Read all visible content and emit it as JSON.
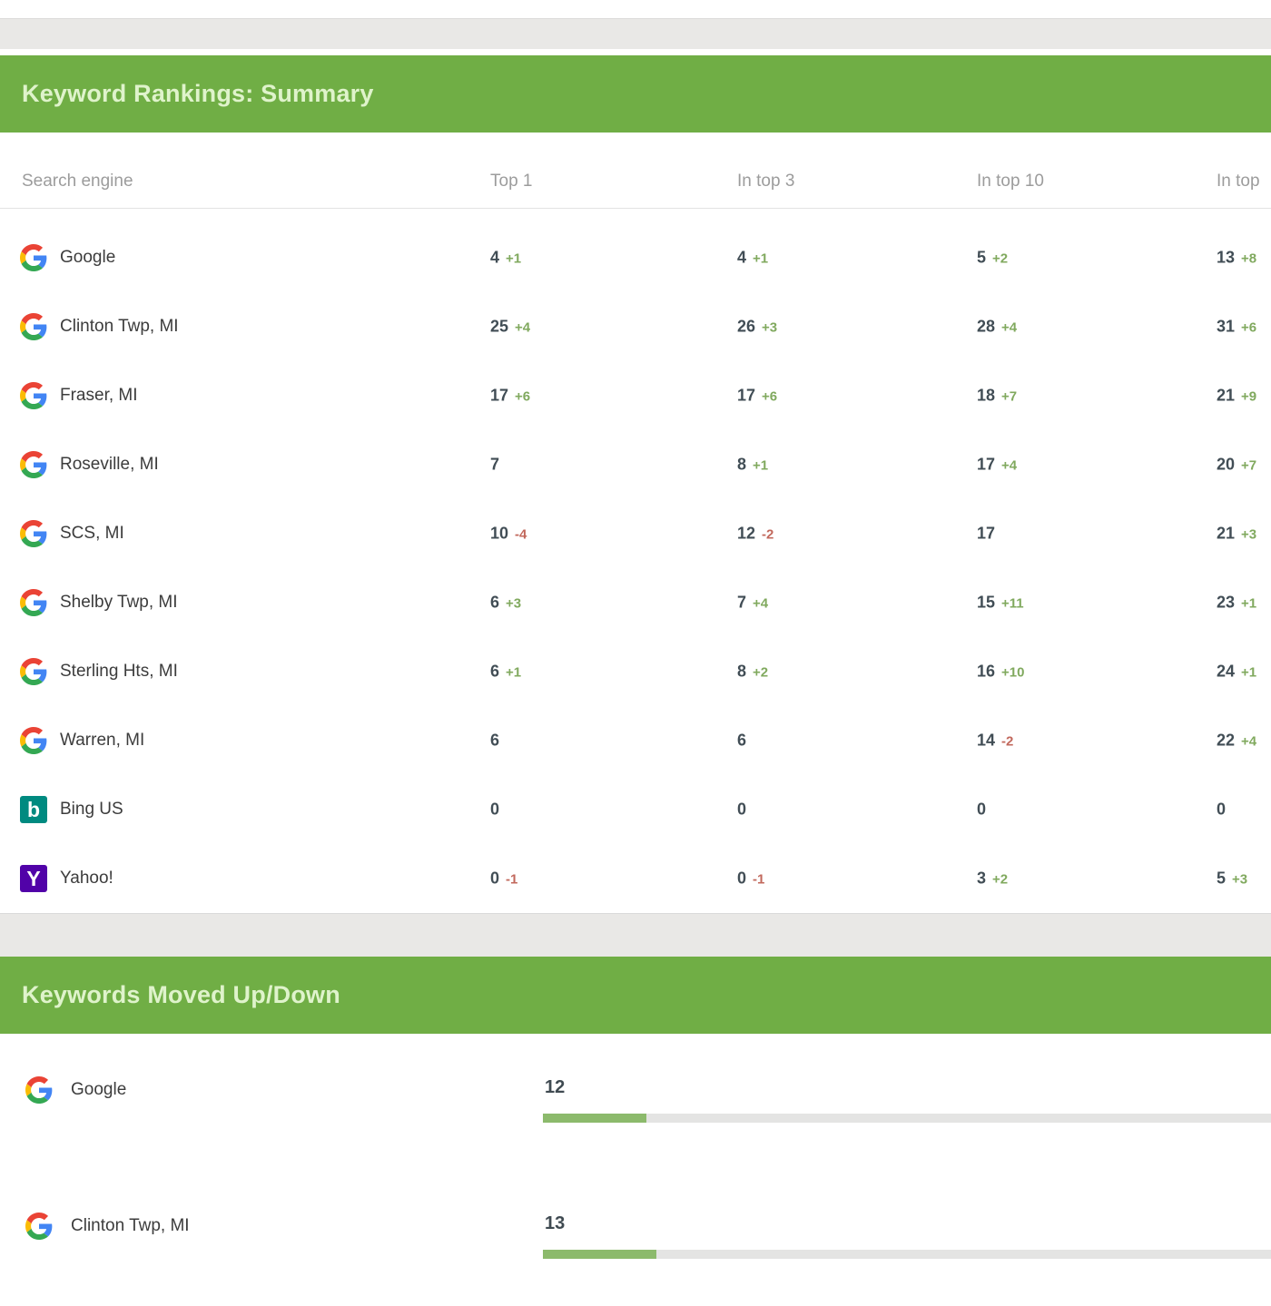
{
  "summary": {
    "title": "Keyword Rankings: Summary",
    "columns": [
      "Search engine",
      "Top 1",
      "In top 3",
      "In top 10",
      "In top"
    ],
    "rows": [
      {
        "engine": "Google",
        "icon": "google",
        "top1": "4",
        "top1_delta": "+1",
        "top3": "4",
        "top3_delta": "+1",
        "top10": "5",
        "top10_delta": "+2",
        "top20": "13",
        "top20_delta": "+8"
      },
      {
        "engine": "Clinton Twp, MI",
        "icon": "google",
        "top1": "25",
        "top1_delta": "+4",
        "top3": "26",
        "top3_delta": "+3",
        "top10": "28",
        "top10_delta": "+4",
        "top20": "31",
        "top20_delta": "+6"
      },
      {
        "engine": "Fraser, MI",
        "icon": "google",
        "top1": "17",
        "top1_delta": "+6",
        "top3": "17",
        "top3_delta": "+6",
        "top10": "18",
        "top10_delta": "+7",
        "top20": "21",
        "top20_delta": "+9"
      },
      {
        "engine": "Roseville, MI",
        "icon": "google",
        "top1": "7",
        "top1_delta": "",
        "top3": "8",
        "top3_delta": "+1",
        "top10": "17",
        "top10_delta": "+4",
        "top20": "20",
        "top20_delta": "+7"
      },
      {
        "engine": "SCS, MI",
        "icon": "google",
        "top1": "10",
        "top1_delta": "-4",
        "top3": "12",
        "top3_delta": "-2",
        "top10": "17",
        "top10_delta": "",
        "top20": "21",
        "top20_delta": "+3"
      },
      {
        "engine": "Shelby Twp, MI",
        "icon": "google",
        "top1": "6",
        "top1_delta": "+3",
        "top3": "7",
        "top3_delta": "+4",
        "top10": "15",
        "top10_delta": "+11",
        "top20": "23",
        "top20_delta": "+1"
      },
      {
        "engine": "Sterling Hts, MI",
        "icon": "google",
        "top1": "6",
        "top1_delta": "+1",
        "top3": "8",
        "top3_delta": "+2",
        "top10": "16",
        "top10_delta": "+10",
        "top20": "24",
        "top20_delta": "+1"
      },
      {
        "engine": "Warren, MI",
        "icon": "google",
        "top1": "6",
        "top1_delta": "",
        "top3": "6",
        "top3_delta": "",
        "top10": "14",
        "top10_delta": "-2",
        "top20": "22",
        "top20_delta": "+4"
      },
      {
        "engine": "Bing US",
        "icon": "bing",
        "top1": "0",
        "top1_delta": "",
        "top3": "0",
        "top3_delta": "",
        "top10": "0",
        "top10_delta": "",
        "top20": "0",
        "top20_delta": ""
      },
      {
        "engine": "Yahoo!",
        "icon": "yahoo",
        "top1": "0",
        "top1_delta": "-1",
        "top3": "0",
        "top3_delta": "-1",
        "top10": "3",
        "top10_delta": "+2",
        "top20": "5",
        "top20_delta": "+3"
      }
    ]
  },
  "moved": {
    "title": "Keywords Moved Up/Down",
    "rows": [
      {
        "engine": "Google",
        "icon": "google",
        "value": "12",
        "bar_pct": 14.2
      },
      {
        "engine": "Clinton Twp, MI",
        "icon": "google",
        "value": "13",
        "bar_pct": 15.6
      }
    ],
    "icon_labels": {
      "bing": "b",
      "yahoo": "Y"
    }
  },
  "colors": {
    "header_green": "#70ae45",
    "header_text": "#dff3cb",
    "delta_up": "#80a95e",
    "delta_down": "#c2685c",
    "bar_fill": "#8cba6c",
    "bar_track": "#e4e4e3",
    "bing_teal": "#008a80",
    "yahoo_purple": "#5102a8"
  }
}
